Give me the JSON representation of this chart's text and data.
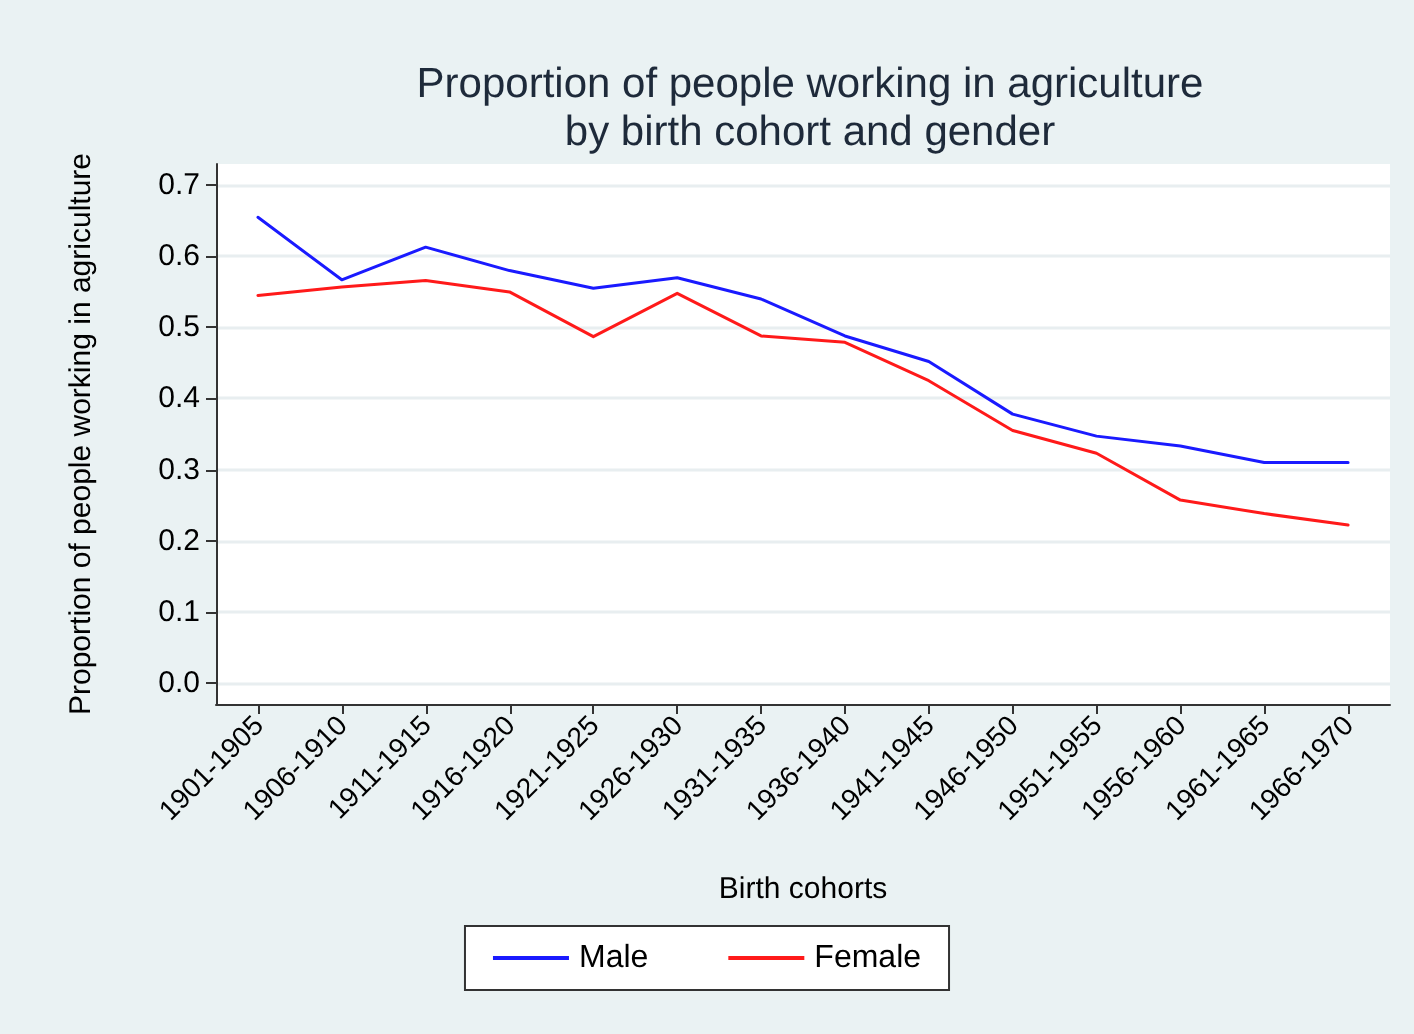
{
  "chart_data": {
    "type": "line",
    "title": "Proportion of people working in agriculture\nby birth cohort and gender",
    "xlabel": "Birth cohorts",
    "ylabel": "Proportion of people working in agriculture",
    "categories": [
      "1901-1905",
      "1906-1910",
      "1911-1915",
      "1916-1920",
      "1921-1925",
      "1926-1930",
      "1931-1935",
      "1936-1940",
      "1941-1945",
      "1946-1950",
      "1951-1955",
      "1956-1960",
      "1961-1965",
      "1966-1970"
    ],
    "series": [
      {
        "name": "Male",
        "color": "#1a1aff",
        "values": [
          0.655,
          0.567,
          0.613,
          0.58,
          0.555,
          0.57,
          0.54,
          0.488,
          0.452,
          0.378,
          0.347,
          0.333,
          0.31,
          0.31
        ]
      },
      {
        "name": "Female",
        "color": "#ff1a1a",
        "values": [
          0.545,
          0.557,
          0.566,
          0.55,
          0.487,
          0.548,
          0.488,
          0.479,
          0.425,
          0.355,
          0.323,
          0.257,
          0.238,
          0.222
        ]
      }
    ],
    "ylim": [
      -0.03,
      0.73
    ],
    "yticks": [
      {
        "value": 0,
        "label": "0.0"
      },
      {
        "value": 0.1,
        "label": "0.1"
      },
      {
        "value": 0.2,
        "label": "0.2"
      },
      {
        "value": 0.3,
        "label": "0.3"
      },
      {
        "value": 0.4,
        "label": "0.4"
      },
      {
        "value": 0.5,
        "label": "0.5"
      },
      {
        "value": 0.6,
        "label": "0.6"
      },
      {
        "value": 0.7,
        "label": "0.7"
      }
    ],
    "grid": "y",
    "legend": "bottom",
    "marker": "none",
    "line_style": "solid"
  }
}
